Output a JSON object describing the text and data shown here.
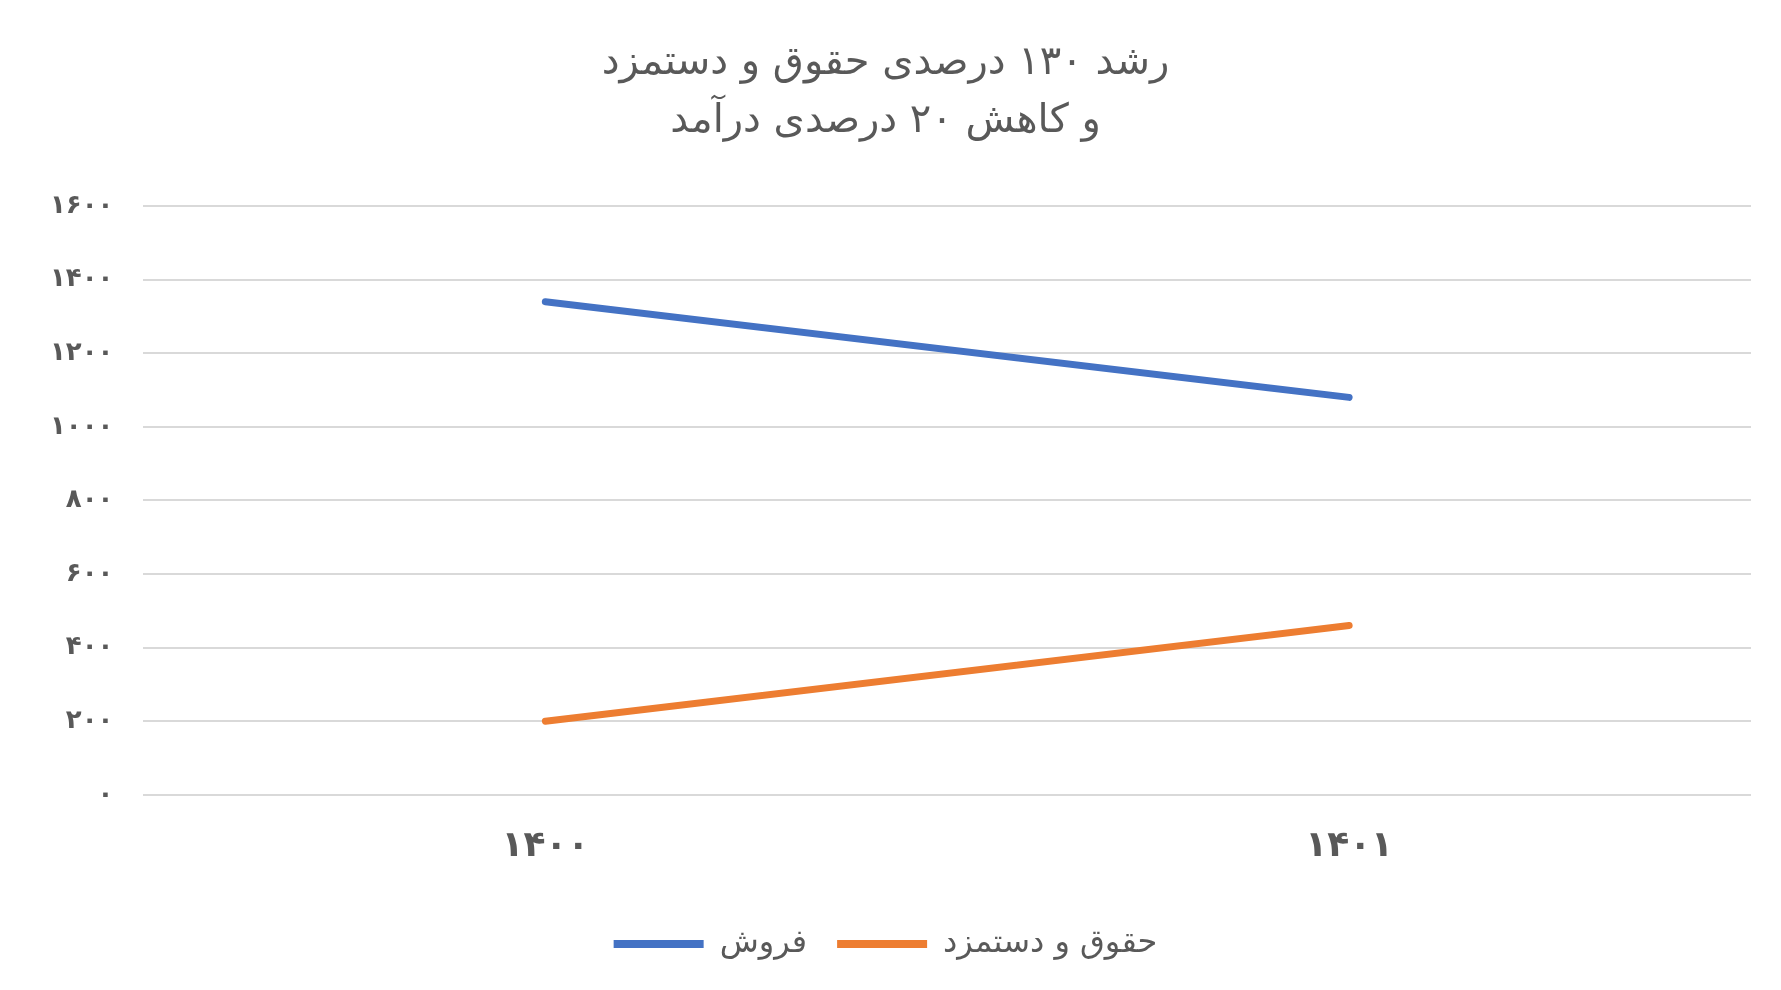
{
  "chart_data": {
    "type": "line",
    "title": "رشد ۱۳۰ درصدی حقوق و دستمزد",
    "subtitle": "و کاهش ۲۰ درصدی درآمد",
    "categories": [
      "۱۴۰۰",
      "۱۴۰۱"
    ],
    "series": [
      {
        "name": "فروش",
        "color": "#4472c4",
        "values": [
          1340,
          1080
        ]
      },
      {
        "name": "حقوق و دستمزد",
        "color": "#ed7d31",
        "values": [
          200,
          460
        ]
      }
    ],
    "ylim": [
      0,
      1600
    ],
    "yticks": [
      {
        "value": 0,
        "label": "۰"
      },
      {
        "value": 200,
        "label": "۲۰۰"
      },
      {
        "value": 400,
        "label": "۴۰۰"
      },
      {
        "value": 600,
        "label": "۶۰۰"
      },
      {
        "value": 800,
        "label": "۸۰۰"
      },
      {
        "value": 1000,
        "label": "۱۰۰۰"
      },
      {
        "value": 1200,
        "label": "۱۲۰۰"
      },
      {
        "value": 1400,
        "label": "۱۴۰۰"
      },
      {
        "value": 1600,
        "label": "۱۶۰۰"
      }
    ],
    "grid": "y",
    "legend": "bottom",
    "marker": "none",
    "line_style": "solid"
  }
}
